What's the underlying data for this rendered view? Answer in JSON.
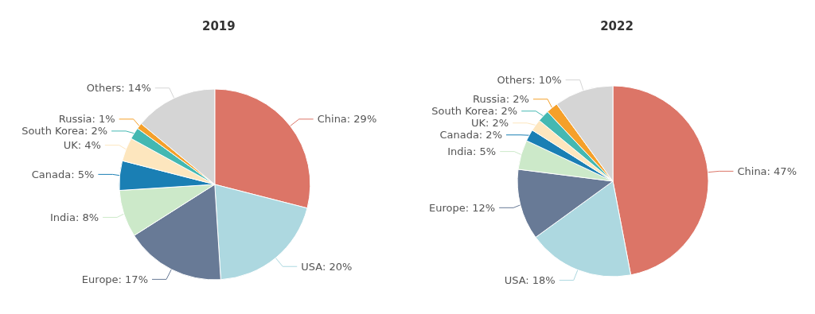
{
  "chart_data": [
    {
      "type": "pie",
      "title": "2019",
      "categories": [
        "China",
        "USA",
        "Europe",
        "India",
        "Canada",
        "UK",
        "South Korea",
        "Russia",
        "Others"
      ],
      "values": [
        29,
        20,
        17,
        8,
        5,
        4,
        2,
        1,
        14
      ],
      "value_labels": [
        "29%",
        "20%",
        "17%",
        "8%",
        "5%",
        "4%",
        "2%",
        "1%",
        "14%"
      ],
      "colors": [
        "#dc7567",
        "#add8e0",
        "#687a96",
        "#cce9c9",
        "#1a7fb4",
        "#fde6be",
        "#44b8b2",
        "#f5a02a",
        "#d5d5d5"
      ],
      "legend": false
    },
    {
      "type": "pie",
      "title": "2022",
      "categories": [
        "China",
        "USA",
        "Europe",
        "India",
        "Canada",
        "UK",
        "South Korea",
        "Russia",
        "Others"
      ],
      "values": [
        47,
        18,
        12,
        5,
        2,
        2,
        2,
        2,
        10
      ],
      "value_labels": [
        "47%",
        "18%",
        "12%",
        "5%",
        "2%",
        "2%",
        "2%",
        "2%",
        "10%"
      ],
      "colors": [
        "#dc7567",
        "#add8e0",
        "#687a96",
        "#cce9c9",
        "#1a7fb4",
        "#fde6be",
        "#44b8b2",
        "#f5a02a",
        "#d5d5d5"
      ],
      "legend": false
    }
  ]
}
